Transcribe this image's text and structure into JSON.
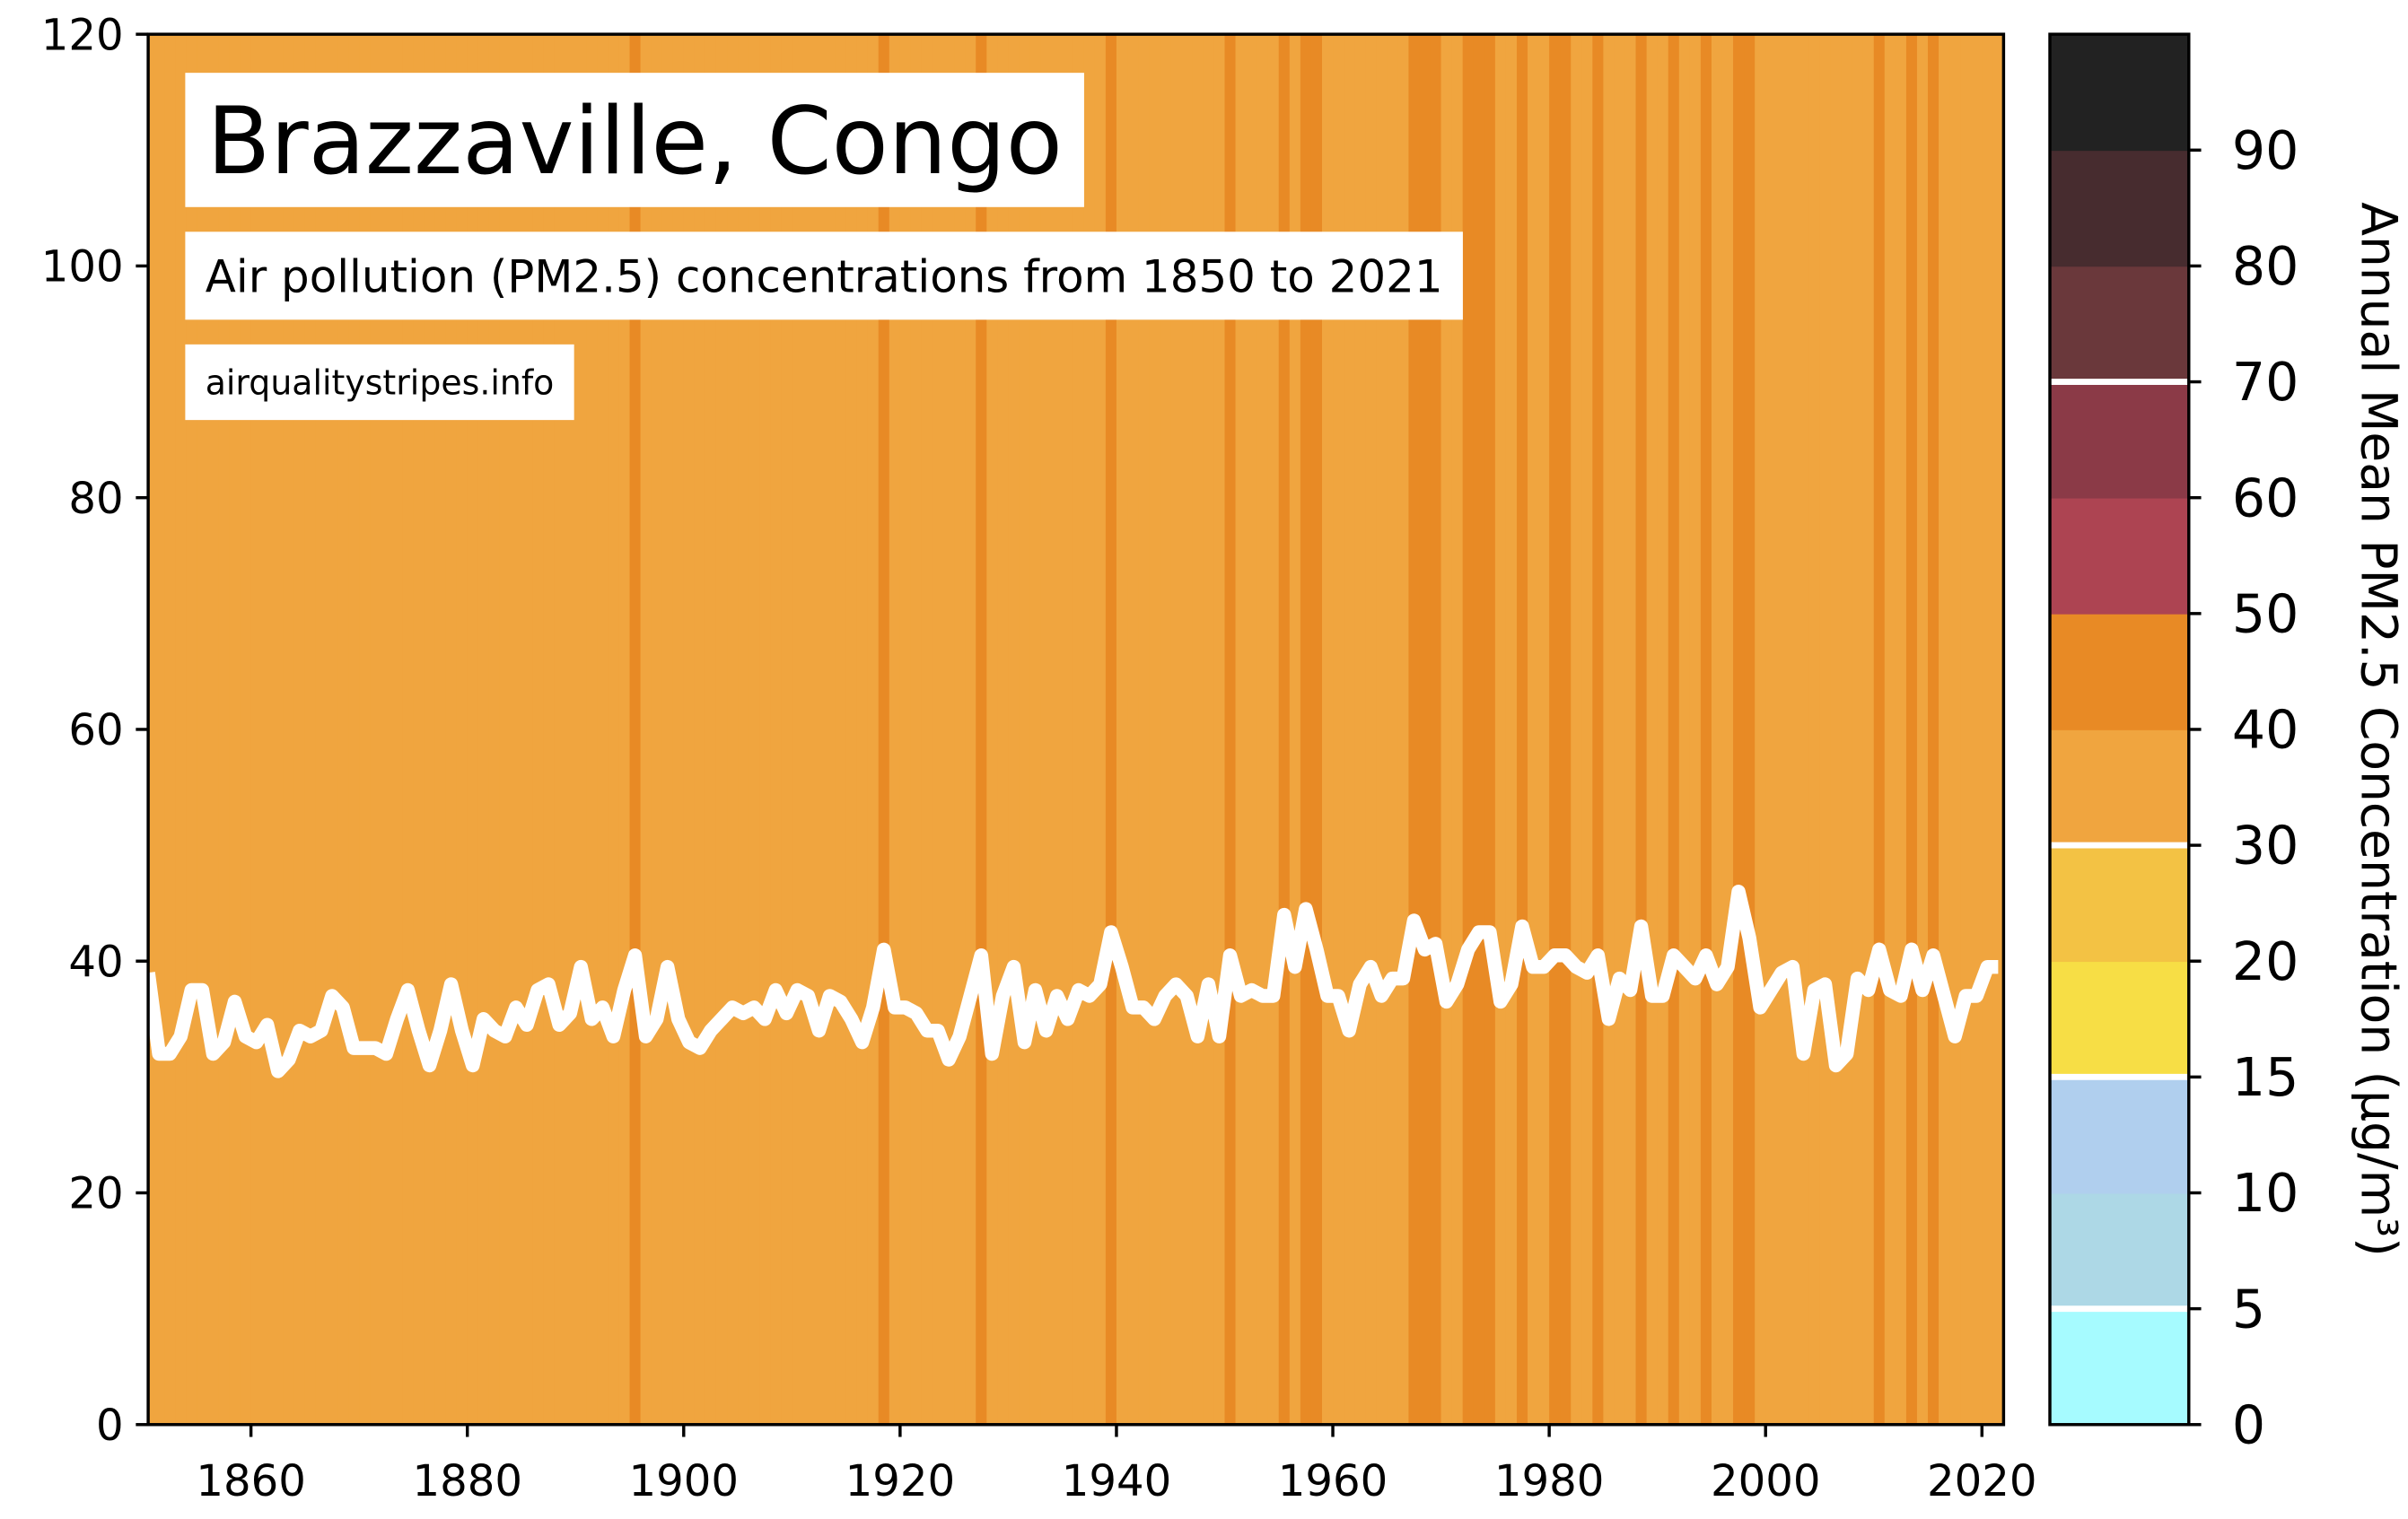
{
  "chart_data": {
    "type": "stripes",
    "title": "Brazzaville, Congo",
    "subtitle": "Air pollution (PM2.5) concentrations from 1850 to 2021",
    "source": "airqualitystripes.info",
    "x": [
      1850,
      1851,
      1852,
      1853,
      1854,
      1855,
      1856,
      1857,
      1858,
      1859,
      1860,
      1861,
      1862,
      1863,
      1864,
      1865,
      1866,
      1867,
      1868,
      1869,
      1870,
      1871,
      1872,
      1873,
      1874,
      1875,
      1876,
      1877,
      1878,
      1879,
      1880,
      1881,
      1882,
      1883,
      1884,
      1885,
      1886,
      1887,
      1888,
      1889,
      1890,
      1891,
      1892,
      1893,
      1894,
      1895,
      1896,
      1897,
      1898,
      1899,
      1900,
      1901,
      1902,
      1903,
      1904,
      1905,
      1906,
      1907,
      1908,
      1909,
      1910,
      1911,
      1912,
      1913,
      1914,
      1915,
      1916,
      1917,
      1918,
      1919,
      1920,
      1921,
      1922,
      1923,
      1924,
      1925,
      1926,
      1927,
      1928,
      1929,
      1930,
      1931,
      1932,
      1933,
      1934,
      1935,
      1936,
      1937,
      1938,
      1939,
      1940,
      1941,
      1942,
      1943,
      1944,
      1945,
      1946,
      1947,
      1948,
      1949,
      1950,
      1951,
      1952,
      1953,
      1954,
      1955,
      1956,
      1957,
      1958,
      1959,
      1960,
      1961,
      1962,
      1963,
      1964,
      1965,
      1966,
      1967,
      1968,
      1969,
      1970,
      1971,
      1972,
      1973,
      1974,
      1975,
      1976,
      1977,
      1978,
      1979,
      1980,
      1981,
      1982,
      1983,
      1984,
      1985,
      1986,
      1987,
      1988,
      1989,
      1990,
      1991,
      1992,
      1993,
      1994,
      1995,
      1996,
      1997,
      1998,
      1999,
      2000,
      2001,
      2002,
      2003,
      2004,
      2005,
      2006,
      2007,
      2008,
      2009,
      2010,
      2011,
      2012,
      2013,
      2014,
      2015,
      2016,
      2017,
      2018,
      2019,
      2020,
      2021
    ],
    "series": [
      {
        "color": "#ffffff",
        "values": [
          39,
          32,
          32,
          33.5,
          37.5,
          37.5,
          32,
          33,
          36.5,
          33.5,
          33,
          34.5,
          30.5,
          31.5,
          34,
          33.5,
          34,
          37,
          36,
          32.5,
          32.5,
          32.5,
          32,
          35,
          37.5,
          34,
          31,
          34,
          38,
          34,
          31,
          35,
          34,
          33.5,
          36,
          34.5,
          37.5,
          38,
          34.5,
          35.5,
          39.5,
          35,
          36,
          33.5,
          37.5,
          40.5,
          33.5,
          35,
          39.5,
          35,
          33,
          32.5,
          34,
          35,
          36,
          35.5,
          36,
          35,
          37.5,
          35.5,
          37.5,
          37,
          34,
          37,
          36.5,
          35,
          33,
          36,
          41,
          36,
          36,
          35.5,
          34,
          34,
          31.5,
          33.5,
          37,
          40.5,
          32,
          37,
          39.5,
          33,
          37.5,
          34,
          37,
          35,
          37.5,
          37,
          38,
          42.5,
          39.5,
          36,
          36,
          35,
          37,
          38,
          37,
          33.5,
          38,
          33.5,
          40.5,
          37,
          37.5,
          37,
          37,
          44,
          39.5,
          44.5,
          41,
          37,
          37,
          34,
          38,
          39.5,
          37,
          38.5,
          38.5,
          43.5,
          41,
          41.5,
          36.5,
          38,
          41,
          42.5,
          42.5,
          36.5,
          38,
          43,
          39.5,
          39.5,
          40.5,
          40.5,
          39.5,
          39,
          40.5,
          35,
          38.5,
          37.5,
          43,
          37,
          37,
          40.5,
          39.5,
          38.5,
          40.5,
          38,
          39.5,
          46,
          42,
          36,
          37.5,
          39,
          39.5,
          32,
          37.5,
          38,
          31,
          32,
          38.5,
          37.5,
          41,
          37.5,
          37,
          41,
          37.5,
          40.5,
          37,
          33.5,
          37,
          37,
          39.5,
          39.5
        ]
      }
    ],
    "xlim": [
      1850.5,
      2022
    ],
    "ylim": [
      0,
      120
    ],
    "xticks": [
      1860,
      1880,
      1900,
      1920,
      1940,
      1960,
      1980,
      2000,
      2020
    ],
    "yticks": [
      0,
      20,
      40,
      60,
      80,
      100,
      120
    ],
    "colorbar": {
      "label": "Annual Mean PM2.5 Concentration (µg/m³)",
      "bounds": [
        0,
        5,
        10,
        15,
        20,
        30,
        40,
        50,
        60,
        70,
        80,
        90,
        100
      ],
      "colors": [
        "#a6fbff",
        "#add8e6",
        "#b0cfee",
        "#f7de45",
        "#f3c244",
        "#f0a53f",
        "#e88a25",
        "#ad4452",
        "#8b3a47",
        "#6a383b",
        "#472c2f",
        "#222222"
      ],
      "ticks": [
        0,
        5,
        10,
        15,
        20,
        30,
        40,
        50,
        60,
        70,
        80,
        90
      ],
      "guidelines": [
        5,
        15,
        30,
        70
      ]
    }
  }
}
